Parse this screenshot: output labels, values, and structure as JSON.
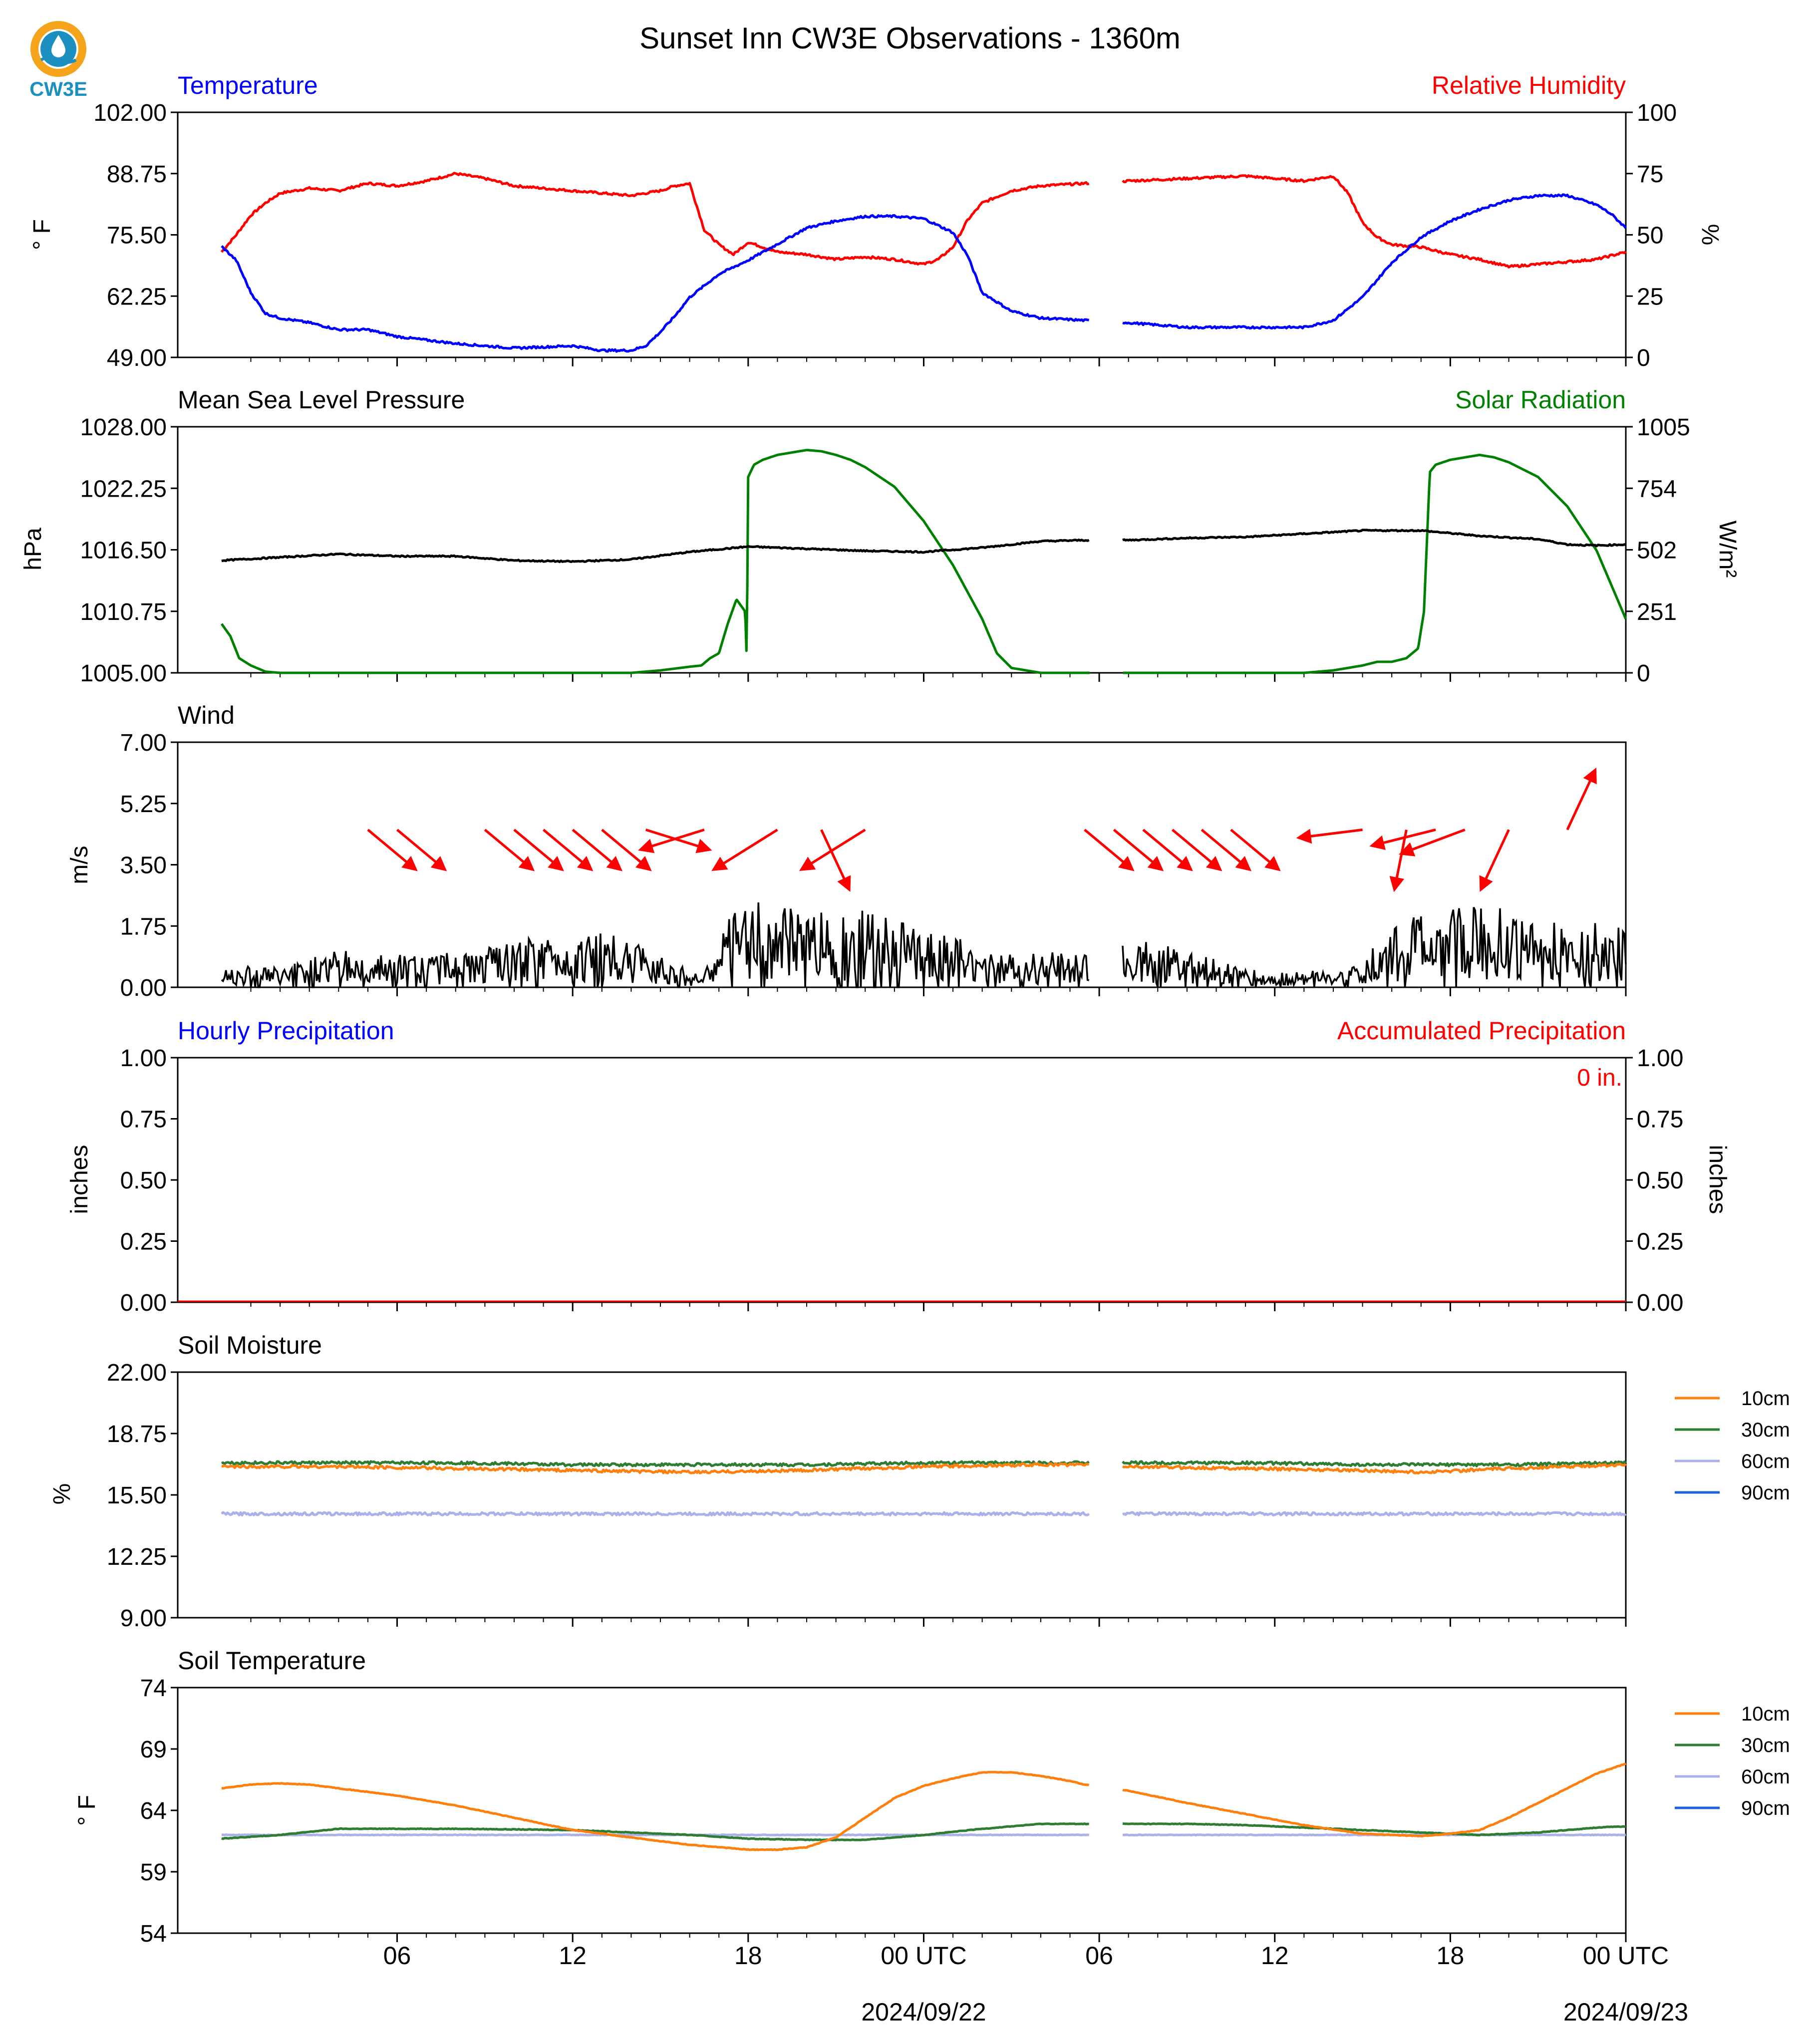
{
  "page_title": "Sunset Inn CW3E Observations - 1360m",
  "logo": {
    "text": "CW3E",
    "icon": "cw3e-water-drop-logo",
    "colors": {
      "orange": "#f5a31a",
      "blue": "#1b8fc0"
    }
  },
  "x_axis": {
    "ticks": [
      "06",
      "12",
      "18",
      "00 UTC",
      "06",
      "12",
      "18",
      "00 UTC"
    ],
    "date_labels": [
      "2024/09/22",
      "2024/09/23"
    ]
  },
  "chart_data": [
    {
      "type": "line",
      "panel": "temperature",
      "title_left": "Temperature",
      "title_right": "Relative Humidity",
      "ylabel_left": "° F",
      "ylabel_right": "%",
      "y_ticks_left": [
        "102.00",
        "88.75",
        "75.50",
        "62.25",
        "49.00"
      ],
      "y_ticks_right": [
        "100",
        "75",
        "50",
        "25",
        "0"
      ],
      "ylim_left": [
        49,
        102
      ],
      "ylim_right": [
        0,
        100
      ],
      "x_range_hours": [
        0,
        48
      ],
      "gap_hours": [
        29.7,
        30.8
      ],
      "colors": {
        "left": "#0000ff",
        "right": "#ff0000"
      },
      "series": [
        {
          "name": "Temperature",
          "axis": "left",
          "x": [
            0,
            0.5,
            1,
            1.5,
            2,
            3,
            4,
            5,
            6,
            8,
            10,
            12,
            13,
            14,
            14.5,
            15,
            15.5,
            16,
            17,
            18,
            19,
            20,
            21,
            22,
            23,
            24,
            24.5,
            25,
            25.5,
            26,
            27,
            28,
            29.5,
            31,
            33,
            35,
            37,
            38,
            39,
            40,
            41,
            42,
            43,
            44,
            45,
            46,
            46.5,
            47,
            47.5,
            48
          ],
          "values": [
            73,
            70,
            63,
            58.5,
            57.5,
            56.5,
            55,
            55,
            53.5,
            52,
            51,
            51.5,
            50.5,
            50.5,
            51.5,
            54.5,
            58,
            62,
            67,
            70,
            73.5,
            77,
            78.5,
            79.5,
            79.5,
            79,
            77.5,
            76,
            71,
            63,
            59,
            57.5,
            57,
            56.5,
            55.5,
            55.5,
            55.5,
            57,
            62,
            69.5,
            75,
            78.5,
            81,
            83,
            84,
            84,
            83,
            82,
            80,
            77
          ]
        },
        {
          "name": "Relative Humidity",
          "axis": "right",
          "x": [
            0,
            0.5,
            1,
            1.5,
            2,
            3,
            4,
            5,
            6,
            7,
            8,
            9,
            10,
            11,
            12,
            13,
            14,
            15,
            15.5,
            16,
            16.5,
            17,
            17.5,
            18,
            19,
            20,
            21,
            22,
            23,
            24,
            24.5,
            25,
            25.5,
            26,
            27,
            28,
            29.5,
            31,
            33,
            35,
            37,
            38,
            38.5,
            39,
            39.5,
            40,
            41,
            42,
            43,
            44,
            45,
            46,
            47,
            48
          ],
          "values": [
            43,
            50,
            58,
            63,
            67,
            69,
            68,
            71,
            70,
            72,
            75,
            73,
            70,
            69,
            68,
            67,
            66,
            68,
            70,
            71,
            52,
            46,
            42,
            47,
            43,
            42,
            40,
            41,
            40,
            38,
            40,
            45,
            56,
            63,
            68,
            70,
            71,
            72,
            73,
            74,
            72,
            74,
            67,
            55,
            49,
            46,
            45,
            42,
            40,
            37,
            38,
            39,
            40,
            43
          ]
        }
      ]
    },
    {
      "type": "line",
      "panel": "pressure",
      "title_left": "Mean Sea Level Pressure",
      "title_right": "Solar Radiation",
      "ylabel_left": "hPa",
      "ylabel_right": "W/m²",
      "y_ticks_left": [
        "1028.00",
        "1022.25",
        "1016.50",
        "1010.75",
        "1005.00"
      ],
      "y_ticks_right": [
        "1005",
        "754",
        "502",
        "251",
        "0"
      ],
      "ylim_left": [
        1005,
        1028
      ],
      "ylim_right": [
        0,
        1005
      ],
      "x_range_hours": [
        0,
        48
      ],
      "gap_hours": [
        29.7,
        30.8
      ],
      "colors": {
        "left": "#000000",
        "right": "#008000"
      },
      "series": [
        {
          "name": "Mean Sea Level Pressure",
          "axis": "left",
          "x": [
            0,
            2,
            4,
            6,
            8,
            10,
            12,
            14,
            16,
            18,
            20,
            22,
            24,
            26,
            28,
            29.5,
            31,
            33,
            35,
            37,
            39,
            41,
            43,
            45,
            46,
            47,
            48
          ],
          "values": [
            1015.5,
            1015.8,
            1016.1,
            1015.9,
            1015.9,
            1015.5,
            1015.4,
            1015.6,
            1016.3,
            1016.8,
            1016.6,
            1016.4,
            1016.3,
            1016.7,
            1017.3,
            1017.4,
            1017.4,
            1017.6,
            1017.7,
            1018.0,
            1018.3,
            1018.3,
            1017.8,
            1017.5,
            1017.0,
            1016.9,
            1017.0
          ]
        },
        {
          "name": "Solar Radiation",
          "axis": "right",
          "x": [
            0,
            0.3,
            0.6,
            1,
            1.5,
            2,
            5,
            10,
            12,
            13,
            14,
            15,
            16,
            16.4,
            16.7,
            17,
            17.3,
            17.6,
            17.9,
            17.95,
            18,
            18.2,
            18.5,
            19,
            19.5,
            20,
            20.5,
            21,
            21.5,
            22,
            23,
            24,
            25,
            26,
            26.5,
            27,
            28,
            29.5,
            31,
            33,
            35,
            37,
            38,
            39,
            39.5,
            40,
            40.5,
            40.9,
            41.1,
            41.3,
            41.5,
            42,
            42.5,
            43,
            43.5,
            44,
            45,
            46,
            47,
            48
          ],
          "values": [
            200,
            150,
            60,
            30,
            5,
            0,
            0,
            0,
            0,
            0,
            0,
            10,
            25,
            30,
            60,
            80,
            200,
            300,
            250,
            50,
            800,
            850,
            870,
            890,
            900,
            910,
            905,
            890,
            870,
            840,
            760,
            620,
            440,
            220,
            80,
            20,
            0,
            0,
            0,
            0,
            0,
            0,
            10,
            30,
            45,
            45,
            60,
            100,
            250,
            820,
            850,
            870,
            880,
            890,
            880,
            860,
            800,
            680,
            500,
            220
          ]
        }
      ]
    },
    {
      "type": "line",
      "panel": "wind",
      "title_left": "Wind",
      "ylabel_left": "m/s",
      "y_ticks_left": [
        "7.00",
        "5.25",
        "3.50",
        "1.75",
        "0.00"
      ],
      "ylim_left": [
        0,
        7
      ],
      "x_range_hours": [
        0,
        48
      ],
      "gap_hours": [
        29.7,
        30.8
      ],
      "colors": {
        "line": "#000000",
        "arrows": "#ff0000"
      },
      "series": [
        {
          "name": "Wind Speed",
          "x": [
            0,
            1,
            2,
            3,
            4,
            5,
            6,
            7,
            8,
            9,
            10,
            11,
            12,
            13,
            14,
            15,
            15.8,
            16.5,
            17,
            17.5,
            18,
            19,
            20,
            21,
            22,
            23,
            24,
            25,
            26,
            27,
            28,
            29,
            29.5,
            31,
            32,
            33,
            34,
            35,
            36,
            37,
            38,
            39,
            40,
            41,
            42,
            43,
            44,
            45,
            46,
            47,
            48
          ],
          "values": [
            0.3,
            0.4,
            0.3,
            0.5,
            0.6,
            0.5,
            0.5,
            0.6,
            0.5,
            0.6,
            0.7,
            0.8,
            0.8,
            0.9,
            0.7,
            0.6,
            0.3,
            0.2,
            0.8,
            1.2,
            1.4,
            1.2,
            1.3,
            1.1,
            1.2,
            1.1,
            1.0,
            0.8,
            0.6,
            0.5,
            0.6,
            0.5,
            0.5,
            0.7,
            0.7,
            0.6,
            0.5,
            0.3,
            0.2,
            0.3,
            0.2,
            0.4,
            1.0,
            1.2,
            1.2,
            1.3,
            1.2,
            1.1,
            1.0,
            1.0,
            0.9
          ]
        },
        {
          "name": "Wind Direction (arrows)",
          "x": [
            5,
            6,
            9,
            10,
            11,
            12,
            13,
            14.5,
            16.5,
            19,
            20.5,
            22,
            29.5,
            30.5,
            31.5,
            32.5,
            33.5,
            34.5,
            39,
            40.5,
            41.5,
            42.5,
            44,
            46
          ],
          "u": [
            1.2,
            1.2,
            1.2,
            1.2,
            1.2,
            1.2,
            1.2,
            1.6,
            -1.6,
            -1.6,
            0.7,
            -1.6,
            1.2,
            1.2,
            1.2,
            1.2,
            1.2,
            1.2,
            -1.6,
            -0.3,
            -1.6,
            -1.6,
            -0.7,
            0.7
          ],
          "v": [
            -1.0,
            -1.0,
            -1.0,
            -1.0,
            -1.0,
            -1.0,
            -1.0,
            -0.5,
            -0.5,
            -1.0,
            -1.5,
            -1.0,
            -1.0,
            -1.0,
            -1.0,
            -1.0,
            -1.0,
            -1.0,
            -0.2,
            -1.5,
            -0.4,
            -0.6,
            -1.5,
            1.5
          ]
        }
      ]
    },
    {
      "type": "line",
      "panel": "precipitation",
      "title_left": "Hourly Precipitation",
      "title_right": "Accumulated Precipitation",
      "ylabel_left": "inches",
      "ylabel_right": "inches",
      "y_ticks_left": [
        "1.00",
        "0.75",
        "0.50",
        "0.25",
        "0.00"
      ],
      "y_ticks_right": [
        "1.00",
        "0.75",
        "0.50",
        "0.25",
        "0.00"
      ],
      "ylim_left": [
        0,
        1
      ],
      "ylim_right": [
        0,
        1
      ],
      "accumulated_text": "0 in.",
      "colors": {
        "left": "#0000ff",
        "right": "#ff0000"
      },
      "series": [
        {
          "name": "Hourly Precipitation",
          "x": [
            0,
            48
          ],
          "values": [
            0,
            0
          ]
        },
        {
          "name": "Accumulated Precipitation",
          "x": [
            0,
            48
          ],
          "values": [
            0,
            0
          ]
        }
      ]
    },
    {
      "type": "line",
      "panel": "soil-moisture",
      "title_left": "Soil Moisture",
      "ylabel_left": "%",
      "y_ticks_left": [
        "22.00",
        "18.75",
        "15.50",
        "12.25",
        "9.00"
      ],
      "ylim_left": [
        9,
        22
      ],
      "x_range_hours": [
        0,
        48
      ],
      "gap_hours": [
        29.7,
        30.8
      ],
      "legend": [
        "10cm",
        "30cm",
        "60cm",
        "90cm"
      ],
      "legend_position": "right",
      "colors": {
        "10cm": "#ff7f0e",
        "30cm": "#2e7d32",
        "60cm": "#aab0e8",
        "90cm": "#1f5fe0"
      },
      "series": [
        {
          "name": "10cm",
          "x": [
            0,
            4,
            8,
            12,
            16,
            20,
            24,
            28,
            29.5,
            31,
            35,
            39,
            41,
            44,
            48
          ],
          "values": [
            17.0,
            17.0,
            16.9,
            16.8,
            16.7,
            16.8,
            17.0,
            17.1,
            17.1,
            17.0,
            16.9,
            16.8,
            16.7,
            16.9,
            17.1
          ]
        },
        {
          "name": "30cm",
          "x": [
            0,
            4,
            8,
            12,
            16,
            20,
            24,
            28,
            29.5,
            31,
            35,
            39,
            44,
            48
          ],
          "values": [
            17.2,
            17.2,
            17.2,
            17.1,
            17.1,
            17.1,
            17.2,
            17.2,
            17.2,
            17.2,
            17.2,
            17.1,
            17.1,
            17.2
          ]
        },
        {
          "name": "60cm",
          "x": [
            0,
            8,
            16,
            24,
            29.5,
            31,
            39,
            48
          ],
          "values": [
            14.5,
            14.5,
            14.5,
            14.5,
            14.5,
            14.5,
            14.5,
            14.5
          ]
        }
      ]
    },
    {
      "type": "line",
      "panel": "soil-temperature",
      "title_left": "Soil Temperature",
      "ylabel_left": "° F",
      "y_ticks_left": [
        "74",
        "69",
        "64",
        "59",
        "54"
      ],
      "ylim_left": [
        54,
        74
      ],
      "x_range_hours": [
        0,
        48
      ],
      "gap_hours": [
        29.7,
        30.8
      ],
      "legend": [
        "10cm",
        "30cm",
        "60cm",
        "90cm"
      ],
      "legend_position": "right",
      "colors": {
        "10cm": "#ff7f0e",
        "30cm": "#2e7d32",
        "60cm": "#aab0e8",
        "90cm": "#1f5fe0"
      },
      "series": [
        {
          "name": "10cm",
          "x": [
            0,
            1,
            2,
            3,
            4,
            6,
            8,
            10,
            12,
            14,
            16,
            17,
            18,
            19,
            20,
            21,
            22,
            23,
            24,
            25,
            26,
            27,
            28,
            29,
            29.5,
            31,
            33,
            35,
            37,
            39,
            41,
            42,
            43,
            44,
            45,
            46,
            47,
            48
          ],
          "values": [
            65.8,
            66.1,
            66.2,
            66.1,
            65.8,
            65.2,
            64.4,
            63.4,
            62.4,
            61.8,
            61.2,
            61.0,
            60.8,
            60.8,
            61.0,
            61.8,
            63.4,
            65.0,
            66.0,
            66.6,
            67.1,
            67.1,
            66.8,
            66.4,
            66.1,
            65.6,
            64.6,
            63.7,
            62.8,
            62.1,
            61.9,
            62.1,
            62.4,
            63.4,
            64.6,
            65.8,
            67.0,
            67.8
          ]
        },
        {
          "name": "30cm",
          "x": [
            0,
            2,
            4,
            8,
            12,
            16,
            18,
            20,
            22,
            24,
            26,
            28,
            29.5,
            31,
            33,
            35,
            37,
            39,
            41,
            43,
            45,
            47,
            48
          ],
          "values": [
            61.7,
            62.0,
            62.5,
            62.5,
            62.4,
            62.0,
            61.7,
            61.6,
            61.6,
            62.0,
            62.5,
            62.9,
            62.9,
            62.9,
            62.9,
            62.8,
            62.6,
            62.4,
            62.2,
            62.0,
            62.2,
            62.6,
            62.7
          ]
        },
        {
          "name": "60cm",
          "x": [
            0,
            8,
            16,
            24,
            29.5,
            31,
            39,
            48
          ],
          "values": [
            62.0,
            62.0,
            62.0,
            62.0,
            62.0,
            62.0,
            62.0,
            62.0
          ]
        }
      ]
    }
  ]
}
